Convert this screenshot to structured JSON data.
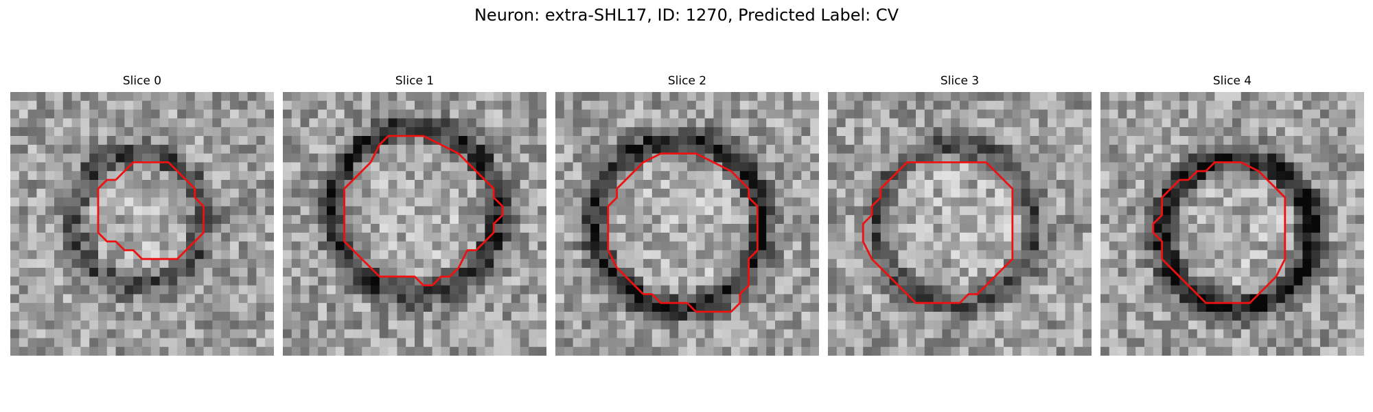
{
  "figure": {
    "title": "Neuron: extra-SHL17, ID: 1270, Predicted Label: CV",
    "contour_color": "#ee1111",
    "panels": [
      {
        "title": "Slice 0",
        "seed": 11,
        "ring_cx": 14.5,
        "ring_cy": 14.5,
        "ring_r": 7.5,
        "ring_strength": 0.35,
        "contour": [
          [
            14,
            8
          ],
          [
            18,
            8
          ],
          [
            21,
            11
          ],
          [
            21,
            12
          ],
          [
            22,
            13
          ],
          [
            22,
            16
          ],
          [
            20,
            18
          ],
          [
            19,
            19
          ],
          [
            15,
            19
          ],
          [
            14,
            18
          ],
          [
            13,
            18
          ],
          [
            12,
            17
          ],
          [
            11,
            17
          ],
          [
            10,
            16
          ],
          [
            10,
            11
          ],
          [
            11,
            10
          ],
          [
            12,
            10
          ],
          [
            13,
            9
          ]
        ]
      },
      {
        "title": "Slice 1",
        "seed": 23,
        "ring_cx": 15,
        "ring_cy": 13.5,
        "ring_r": 9.5,
        "ring_strength": 0.45,
        "contour": [
          [
            12,
            5
          ],
          [
            16,
            5
          ],
          [
            18,
            6
          ],
          [
            20,
            7
          ],
          [
            24,
            11
          ],
          [
            24,
            12
          ],
          [
            25,
            13
          ],
          [
            25,
            14
          ],
          [
            24,
            15
          ],
          [
            24,
            16
          ],
          [
            23,
            17
          ],
          [
            22,
            18
          ],
          [
            21,
            18
          ],
          [
            20,
            20
          ],
          [
            19,
            21
          ],
          [
            18,
            21
          ],
          [
            17,
            22
          ],
          [
            16,
            22
          ],
          [
            15,
            21
          ],
          [
            11,
            21
          ],
          [
            10,
            20
          ],
          [
            9,
            19
          ],
          [
            8,
            18
          ],
          [
            7,
            17
          ],
          [
            7,
            11
          ],
          [
            10,
            8
          ],
          [
            11,
            6
          ]
        ]
      },
      {
        "title": "Slice 2",
        "seed": 37,
        "ring_cx": 14,
        "ring_cy": 15,
        "ring_r": 9.5,
        "ring_strength": 0.5,
        "contour": [
          [
            12,
            7
          ],
          [
            16,
            7
          ],
          [
            18,
            8
          ],
          [
            20,
            9
          ],
          [
            22,
            11
          ],
          [
            22,
            12
          ],
          [
            23,
            13
          ],
          [
            23,
            18
          ],
          [
            22,
            19
          ],
          [
            22,
            22
          ],
          [
            21,
            23
          ],
          [
            21,
            24
          ],
          [
            20,
            25
          ],
          [
            19,
            25
          ],
          [
            18,
            25
          ],
          [
            16,
            25
          ],
          [
            15,
            24
          ],
          [
            13,
            24
          ],
          [
            12,
            24
          ],
          [
            11,
            23
          ],
          [
            10,
            23
          ],
          [
            9,
            22
          ],
          [
            8,
            21
          ],
          [
            7,
            20
          ],
          [
            6,
            18
          ],
          [
            6,
            13
          ],
          [
            7,
            12
          ],
          [
            7,
            11
          ],
          [
            8,
            10
          ],
          [
            10,
            8
          ]
        ]
      },
      {
        "title": "Slice 3",
        "seed": 49,
        "ring_cx": 14.5,
        "ring_cy": 15,
        "ring_r": 9,
        "ring_strength": 0.3,
        "contour": [
          [
            12,
            8
          ],
          [
            18,
            8
          ],
          [
            20,
            10
          ],
          [
            21,
            11
          ],
          [
            21,
            19
          ],
          [
            20,
            20
          ],
          [
            19,
            21
          ],
          [
            18,
            22
          ],
          [
            17,
            23
          ],
          [
            16,
            23
          ],
          [
            15,
            24
          ],
          [
            13,
            24
          ],
          [
            10,
            24
          ],
          [
            9,
            23
          ],
          [
            8,
            22
          ],
          [
            7,
            21
          ],
          [
            6,
            20
          ],
          [
            5,
            19
          ],
          [
            4,
            17
          ],
          [
            4,
            15
          ],
          [
            5,
            14
          ],
          [
            5,
            13
          ],
          [
            6,
            12
          ],
          [
            6,
            11
          ],
          [
            7,
            10
          ],
          [
            8,
            9
          ],
          [
            9,
            8
          ]
        ]
      },
      {
        "title": "Slice 4",
        "seed": 61,
        "ring_cx": 15.5,
        "ring_cy": 16,
        "ring_r": 8.5,
        "ring_strength": 0.55,
        "contour": [
          [
            13,
            8
          ],
          [
            16,
            8
          ],
          [
            18,
            9
          ],
          [
            19,
            10
          ],
          [
            20,
            11
          ],
          [
            21,
            12
          ],
          [
            21,
            15
          ],
          [
            21,
            19
          ],
          [
            20,
            21
          ],
          [
            19,
            22
          ],
          [
            18,
            23
          ],
          [
            17,
            24
          ],
          [
            16,
            24
          ],
          [
            12,
            24
          ],
          [
            11,
            23
          ],
          [
            10,
            22
          ],
          [
            9,
            21
          ],
          [
            8,
            20
          ],
          [
            7,
            19
          ],
          [
            7,
            17
          ],
          [
            6,
            16
          ],
          [
            6,
            15
          ],
          [
            7,
            14
          ],
          [
            7,
            12
          ],
          [
            8,
            11
          ],
          [
            9,
            10
          ],
          [
            10,
            10
          ],
          [
            11,
            9
          ],
          [
            12,
            9
          ]
        ]
      }
    ]
  }
}
